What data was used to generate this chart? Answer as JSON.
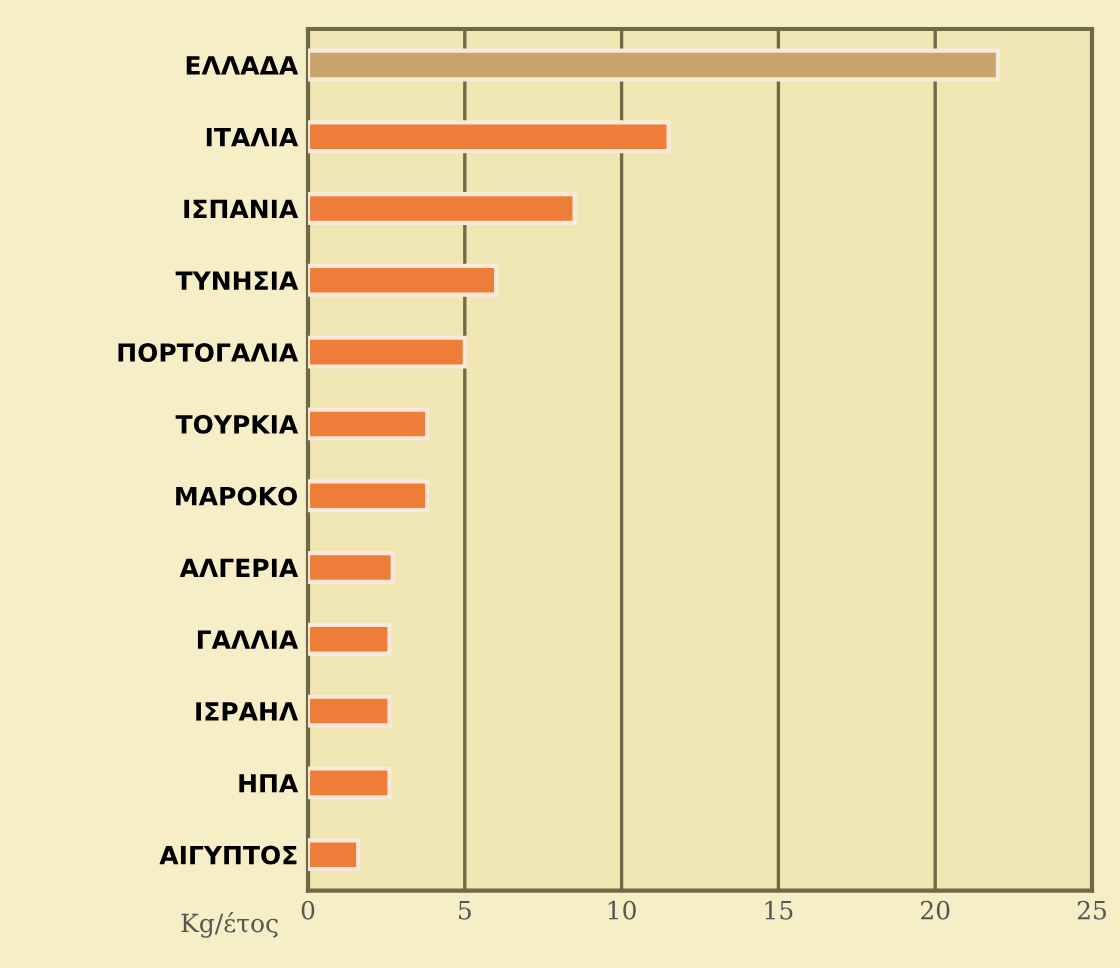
{
  "chart_data": {
    "type": "bar",
    "orientation": "horizontal",
    "xlabel": "Kg/έτος",
    "categories": [
      "ΕΛΛΑΔΑ",
      "ΙΤΑΛΙΑ",
      "ΙΣΠΑΝΙΑ",
      "ΤΥΝΗΣΙΑ",
      "ΠΟΡΤΟΓΑΛΙΑ",
      "ΤΟΥΡΚΙΑ",
      "ΜΑΡΟΚΟ",
      "ΑΛΓΕΡΙΑ",
      "ΓΑΛΛΙΑ",
      "ΙΣΡΑΗΛ",
      "ΗΠΑ",
      "ΑΙΓΥΠΤΟΣ"
    ],
    "values": [
      22,
      11.5,
      8.5,
      6,
      5,
      3.8,
      3.8,
      2.7,
      2.6,
      2.6,
      2.6,
      1.6
    ],
    "colors": [
      "#c9a36e",
      "#ef7d3a",
      "#ef7d3a",
      "#ef7d3a",
      "#ef7d3a",
      "#ef7d3a",
      "#ef7d3a",
      "#ef7d3a",
      "#ef7d3a",
      "#ef7d3a",
      "#ef7d3a",
      "#ef7d3a"
    ],
    "xlim": [
      0,
      25
    ],
    "xticks": [
      0,
      5,
      10,
      15,
      20,
      25
    ],
    "grid": "x",
    "legend": false
  }
}
